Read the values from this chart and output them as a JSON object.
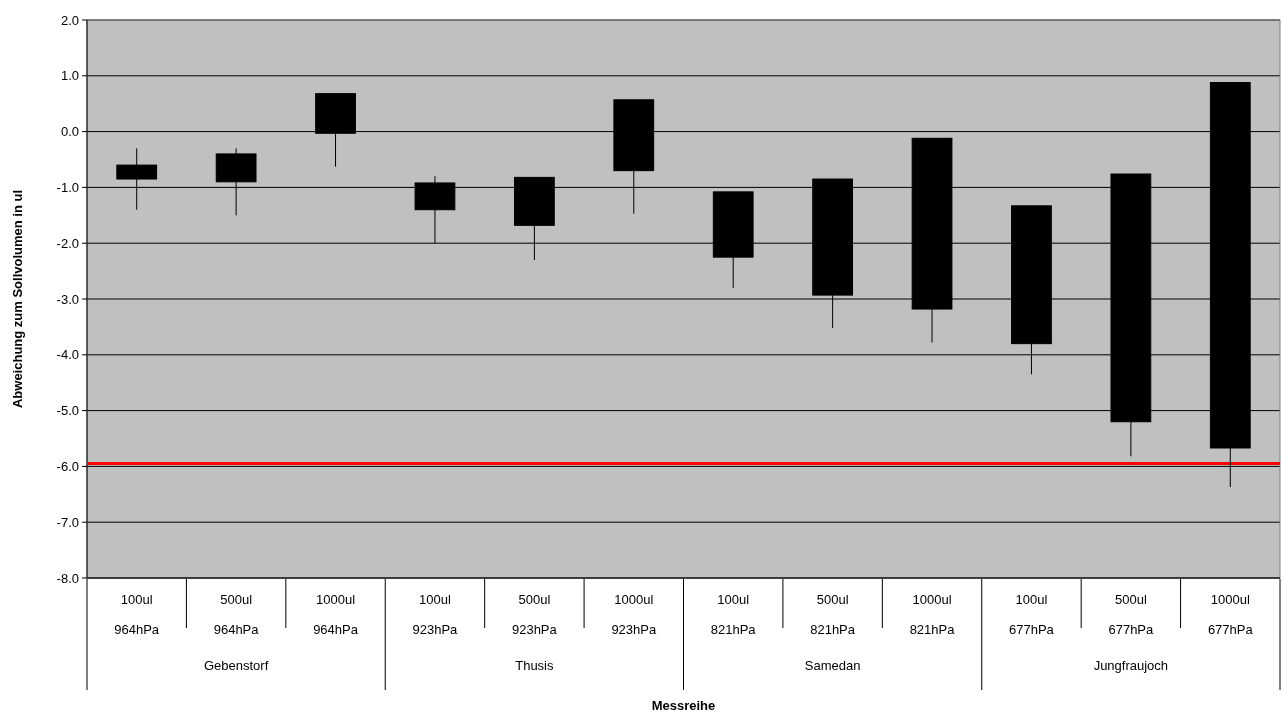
{
  "chart_data": {
    "type": "candlestick",
    "xlabel": "Messreihe",
    "ylabel": "Abweichung zum Sollvolumen in ul",
    "categories": [
      "100ul 964hPa",
      "500ul 964hPa",
      "1000ul 964hPa",
      "100ul 923hPa",
      "500ul 923hPa",
      "1000ul 923hPa",
      "100ul 821hPa",
      "500ul 821hPa",
      "1000ul 821hPa",
      "100ul 677hPa",
      "500ul 677hPa",
      "1000ul 677hPa"
    ],
    "ohlc": [
      [
        -0.6,
        -0.3,
        -1.4,
        -0.85
      ],
      [
        -0.4,
        -0.3,
        -1.5,
        -0.9
      ],
      [
        0.68,
        0.68,
        -0.63,
        -0.03
      ],
      [
        -0.92,
        -0.8,
        -2.0,
        -1.4
      ],
      [
        -0.82,
        -0.82,
        -2.3,
        -1.68
      ],
      [
        0.57,
        0.57,
        -1.47,
        -0.7
      ],
      [
        -1.08,
        -1.08,
        -2.8,
        -2.25
      ],
      [
        -0.85,
        -0.85,
        -3.52,
        -2.93
      ],
      [
        -0.12,
        -0.12,
        -3.78,
        -3.18
      ],
      [
        -1.33,
        -1.33,
        -4.35,
        -3.8
      ],
      [
        -0.76,
        -0.76,
        -5.82,
        -5.2
      ],
      [
        0.88,
        0.88,
        -6.37,
        -5.67
      ]
    ],
    "color": "#000000",
    "ylim": [
      -8,
      2
    ],
    "yticks": [
      {
        "value": 2,
        "label": "2.0"
      },
      {
        "value": 1,
        "label": "1.0"
      },
      {
        "value": 0,
        "label": "0.0"
      },
      {
        "value": -1,
        "label": "-1.0"
      },
      {
        "value": -2,
        "label": "-2.0"
      },
      {
        "value": -3,
        "label": "-3.0"
      },
      {
        "value": -4,
        "label": "-4.0"
      },
      {
        "value": -5,
        "label": "-5.0"
      },
      {
        "value": -6,
        "label": "-6.0"
      },
      {
        "value": -7,
        "label": "-7.0"
      },
      {
        "value": -8,
        "label": "-8.0"
      }
    ],
    "grid": "y",
    "ref_lines": [
      {
        "axis": "y",
        "value": -5.95,
        "color": "#ff0000"
      }
    ],
    "annotations": [
      "Gebenstorf",
      "Thusis",
      "Samedan",
      "Jungfraujoch"
    ]
  }
}
